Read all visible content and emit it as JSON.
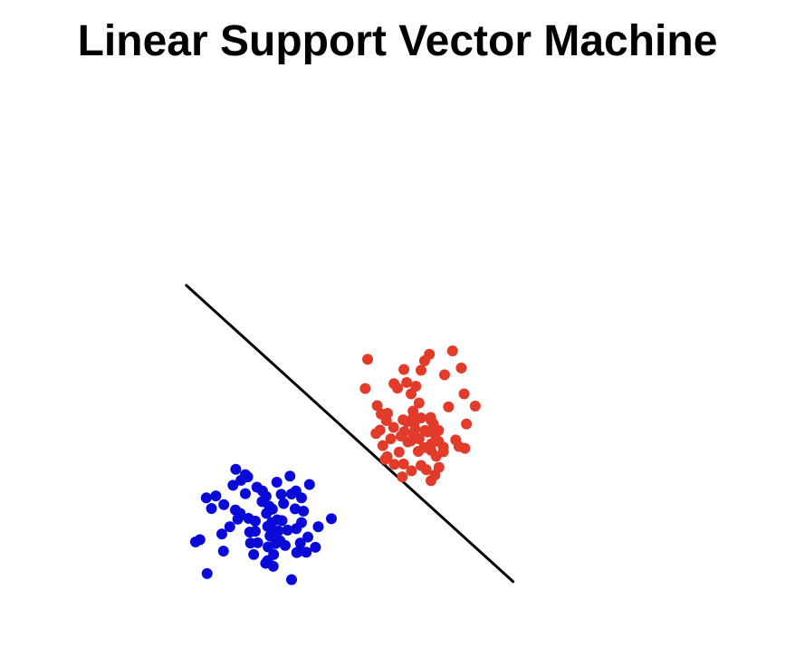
{
  "title": "Linear Support Vector Machine",
  "chart_data": {
    "type": "scatter",
    "title": "Linear Support Vector Machine",
    "xlabel": "",
    "ylabel": "",
    "axes_visible": false,
    "grid": false,
    "xlim": [
      0,
      10
    ],
    "ylim": [
      0,
      10
    ],
    "series": [
      {
        "color": "#e23b2a",
        "points": [
          [
            6.46,
            6.17
          ],
          [
            7.04,
            6.26
          ],
          [
            4.91,
            6.04
          ],
          [
            5.57,
            5.4
          ],
          [
            5.82,
            5.77
          ],
          [
            6.34,
            6.0
          ],
          [
            6.84,
            5.63
          ],
          [
            7.26,
            5.81
          ],
          [
            5.66,
            5.28
          ],
          [
            5.89,
            5.43
          ],
          [
            6.2,
            4.89
          ],
          [
            6.0,
            5.13
          ],
          [
            6.12,
            5.33
          ],
          [
            4.85,
            5.27
          ],
          [
            7.33,
            5.13
          ],
          [
            7.61,
            4.81
          ],
          [
            5.15,
            4.82
          ],
          [
            5.38,
            4.43
          ],
          [
            5.12,
            4.09
          ],
          [
            5.56,
            4.25
          ],
          [
            5.41,
            4.62
          ],
          [
            5.8,
            4.45
          ],
          [
            6.08,
            4.37
          ],
          [
            6.49,
            4.51
          ],
          [
            6.07,
            4.06
          ],
          [
            6.35,
            4.17
          ],
          [
            6.6,
            4.07
          ],
          [
            6.32,
            3.72
          ],
          [
            6.51,
            3.82
          ],
          [
            5.75,
            4.02
          ],
          [
            7.39,
            4.34
          ],
          [
            6.81,
            3.61
          ],
          [
            6.13,
            3.98
          ],
          [
            5.83,
            4.14
          ],
          [
            6.18,
            3.62
          ],
          [
            5.29,
            3.77
          ],
          [
            6.25,
            4.5
          ],
          [
            6.05,
            4.68
          ],
          [
            5.49,
            3.95
          ],
          [
            6.69,
            3.88
          ],
          [
            6.05,
            4.5
          ],
          [
            6.69,
            4.17
          ],
          [
            5.81,
            3.29
          ],
          [
            6.01,
            3.11
          ],
          [
            5.92,
            3.87
          ],
          [
            6.25,
            3.25
          ],
          [
            6.81,
            3.73
          ],
          [
            5.35,
            3.41
          ],
          [
            7.2,
            3.75
          ],
          [
            6.56,
            4.34
          ],
          [
            6.63,
            3.49
          ],
          [
            6.41,
            4.13
          ],
          [
            6.0,
            3.9
          ],
          [
            6.38,
            3.14
          ],
          [
            5.58,
            3.28
          ],
          [
            6.1,
            4.2
          ],
          [
            6.5,
            4.44
          ],
          [
            6.5,
            3.65
          ],
          [
            6.7,
            3.2
          ],
          [
            5.4,
            3.48
          ],
          [
            5.9,
            4.4
          ],
          [
            6.2,
            3.95
          ],
          [
            6.6,
            3.0
          ],
          [
            5.7,
            3.6
          ],
          [
            5.22,
            4.18
          ],
          [
            5.78,
            2.95
          ],
          [
            7.35,
            3.7
          ],
          [
            6.94,
            4.79
          ],
          [
            6.5,
            2.85
          ],
          [
            7.12,
            3.92
          ],
          [
            6.25,
            5.75
          ],
          [
            5.25,
            4.6
          ]
        ]
      },
      {
        "color": "#0a0ad8",
        "points": [
          [
            1.6,
            3.15
          ],
          [
            1.84,
            3.01
          ],
          [
            1.73,
            2.86
          ],
          [
            1.1,
            2.45
          ],
          [
            1.3,
            2.22
          ],
          [
            0.99,
            2.12
          ],
          [
            1.53,
            2.73
          ],
          [
            0.86,
            2.4
          ],
          [
            1.84,
            2.51
          ],
          [
            1.59,
            2.08
          ],
          [
            1.45,
            1.64
          ],
          [
            1.65,
            1.84
          ],
          [
            1.92,
            1.86
          ],
          [
            2.27,
            2.58
          ],
          [
            2.26,
            2.3
          ],
          [
            2.44,
            2.18
          ],
          [
            2.63,
            2.81
          ],
          [
            2.96,
            2.97
          ],
          [
            3.11,
            2.58
          ],
          [
            2.09,
            1.79
          ],
          [
            2.64,
            1.82
          ],
          [
            1.97,
            1.21
          ],
          [
            2.41,
            1.11
          ],
          [
            2.35,
            0.68
          ],
          [
            2.71,
            1.27
          ],
          [
            3.12,
            1.59
          ],
          [
            3.25,
            1.75
          ],
          [
            2.67,
            1.53
          ],
          [
            2.09,
            1.52
          ],
          [
            2.54,
            0.6
          ],
          [
            2.84,
            1.15
          ],
          [
            3.22,
            1.21
          ],
          [
            2.54,
            1.48
          ],
          [
            2.55,
            0.91
          ],
          [
            2.37,
            1.99
          ],
          [
            2.46,
            1.4
          ],
          [
            3.67,
            1.64
          ],
          [
            4.0,
            1.85
          ],
          [
            3.3,
            2.05
          ],
          [
            2.8,
            2.25
          ],
          [
            3.09,
            2.11
          ],
          [
            0.88,
            0.41
          ],
          [
            2.76,
            1.8
          ],
          [
            2.36,
            2.44
          ],
          [
            3.25,
            2.4
          ],
          [
            2.13,
            2.68
          ],
          [
            3.2,
            1.0
          ],
          [
            3.41,
            1.37
          ],
          [
            3.13,
            0.96
          ],
          [
            2.05,
            0.91
          ],
          [
            2.4,
            0.75
          ],
          [
            0.59,
            1.24
          ],
          [
            1.71,
            1.99
          ],
          [
            2.52,
            2.1
          ],
          [
            3.37,
            0.97
          ],
          [
            1.29,
            1.0
          ],
          [
            2.15,
            1.22
          ],
          [
            2.4,
            1.65
          ],
          [
            2.9,
            1.55
          ],
          [
            1.95,
            1.5
          ],
          [
            3.0,
            2.5
          ],
          [
            2.6,
            1.2
          ],
          [
            3.45,
            2.75
          ],
          [
            1.9,
            2.95
          ],
          [
            2.5,
            1.75
          ],
          [
            0.7,
            1.3
          ],
          [
            3.0,
            0.25
          ],
          [
            1.25,
            1.45
          ],
          [
            2.74,
            2.49
          ],
          [
            3.6,
            1.1
          ]
        ]
      }
    ],
    "decision_boundary": {
      "color": "#000000",
      "points": [
        [
          0.36,
          7.98
        ],
        [
          8.56,
          0.2
        ]
      ]
    }
  }
}
